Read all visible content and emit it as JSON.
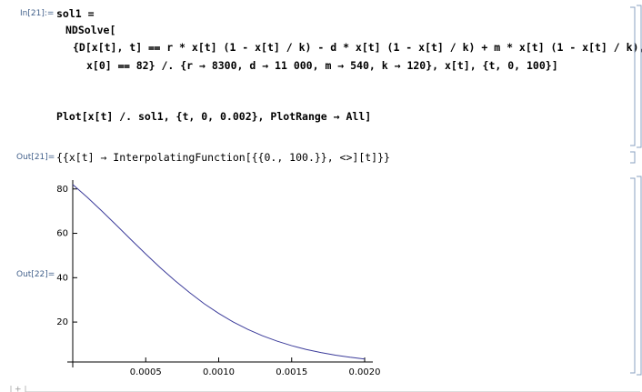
{
  "input_cell": {
    "label": "In[21]:=",
    "lines": [
      "sol1 =",
      "NDSolve[",
      "{D[x[t], t] ⩵ r * x[t] (1 - x[t] / k) - d * x[t] (1 - x[t] / k) + m * x[t] (1 - x[t] / k),",
      "x[0] ⩵ 82} /. {r → 8300, d → 11 000, m → 540, k → 120}, x[t], {t, 0, 100}]",
      "Plot[x[t] /. sol1, {t, 0, 0.002}, PlotRange → All]"
    ]
  },
  "output_cell_1": {
    "label": "Out[21]=",
    "text": "{{x[t] → InterpolatingFunction[{{0., 100.}}, <>][t]}}"
  },
  "output_cell_2": {
    "label": "Out[22]="
  },
  "chart_data": {
    "type": "line",
    "x": [
      0,
      0.0001,
      0.0002,
      0.0003,
      0.0004,
      0.0005,
      0.0006,
      0.0007,
      0.0008,
      0.0009,
      0.001,
      0.0011,
      0.0012,
      0.0013,
      0.0014,
      0.0015,
      0.0016,
      0.0017,
      0.0018,
      0.0019,
      0.002
    ],
    "series": [
      {
        "color": "#3b3b9a",
        "values": [
          82,
          76.2,
          70.0,
          63.6,
          57.1,
          50.7,
          44.5,
          38.7,
          33.3,
          28.3,
          23.9,
          20.0,
          16.7,
          13.8,
          11.4,
          9.35,
          7.65,
          6.24,
          5.08,
          4.13,
          3.35
        ]
      }
    ],
    "xlim": [
      0,
      0.002
    ],
    "ylim": [
      2,
      84
    ],
    "xticks": [
      {
        "value": 0.0005,
        "label": "0.0005"
      },
      {
        "value": 0.001,
        "label": "0.0010"
      },
      {
        "value": 0.0015,
        "label": "0.0015"
      },
      {
        "value": 0.002,
        "label": "0.0020"
      }
    ],
    "yticks": [
      20,
      40,
      60,
      80
    ]
  }
}
